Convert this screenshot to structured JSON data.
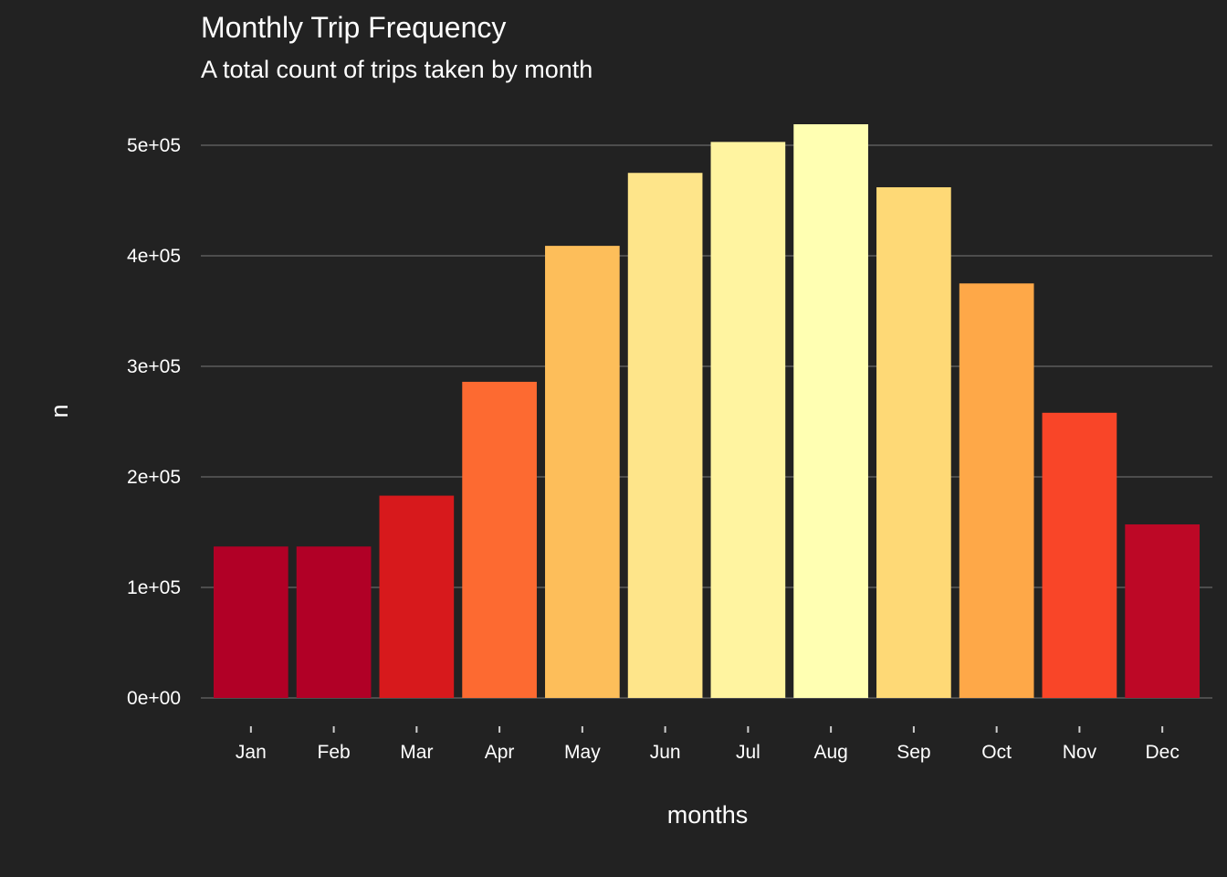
{
  "chart_data": {
    "type": "bar",
    "title": "Monthly Trip Frequency",
    "subtitle": "A total count of trips taken by month",
    "xlabel": "months",
    "ylabel": "n",
    "categories": [
      "Jan",
      "Feb",
      "Mar",
      "Apr",
      "May",
      "Jun",
      "Jul",
      "Aug",
      "Sep",
      "Oct",
      "Nov",
      "Dec"
    ],
    "values": [
      137000,
      137000,
      183000,
      286000,
      409000,
      475000,
      503000,
      519000,
      462000,
      375000,
      258000,
      157000
    ],
    "bar_colors": [
      "#b10026",
      "#b10026",
      "#d7191c",
      "#fd6a31",
      "#fdbe5a",
      "#fee58a",
      "#fff4a0",
      "#ffffb2",
      "#fed976",
      "#fea848",
      "#f94528",
      "#bd0826"
    ],
    "yticks": [
      0,
      100000,
      200000,
      300000,
      400000,
      500000
    ],
    "ytick_labels": [
      "0e+00",
      "1e+05",
      "2e+05",
      "3e+05",
      "4e+05",
      "5e+05"
    ],
    "ylim": [
      0,
      545000
    ],
    "grid": true,
    "legend": "none",
    "background": "#222222"
  }
}
